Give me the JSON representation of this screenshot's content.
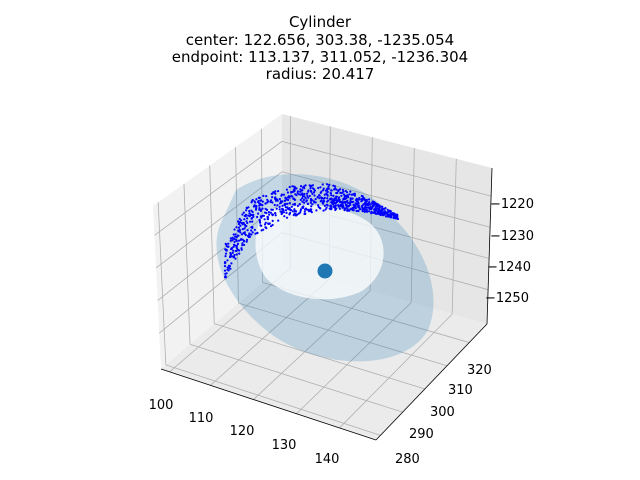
{
  "chart_data": {
    "type": "scatter",
    "projection": "3d",
    "title_lines": [
      "Cylinder",
      "center: 122.656, 303.38, -1235.054",
      "endpoint: 113.137, 311.052, -1236.304",
      "radius: 20.417"
    ],
    "xlabel": "",
    "ylabel": "",
    "zlabel": "",
    "grid": true,
    "x_ticks": [
      "100",
      "110",
      "120",
      "130",
      "140"
    ],
    "y_ticks": [
      "280",
      "290",
      "300",
      "310",
      "320"
    ],
    "z_ticks": [
      "−1220",
      "−1230",
      "−1240",
      "−1250"
    ],
    "xlim": [
      98,
      146
    ],
    "ylim": [
      278,
      328
    ],
    "zlim": [
      -1256,
      -1214
    ],
    "center": {
      "x": 122.656,
      "y": 303.38,
      "z": -1235.054
    },
    "endpoint": {
      "x": 113.137,
      "y": 311.052,
      "z": -1236.304
    },
    "radius": 20.417,
    "point_cloud_color": "#0000ff",
    "center_marker_color": "#1f77b4",
    "cylinder_color": "#1f77b4",
    "cylinder_alpha": 0.2
  }
}
